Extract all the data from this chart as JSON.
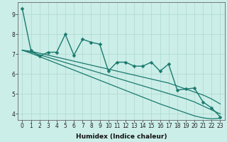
{
  "title": "",
  "xlabel": "Humidex (Indice chaleur)",
  "ylabel": "",
  "bg_color": "#cceee8",
  "line_color": "#1a7a6e",
  "x_data": [
    0,
    1,
    2,
    3,
    4,
    5,
    6,
    7,
    8,
    9,
    10,
    11,
    12,
    13,
    14,
    15,
    16,
    17,
    18,
    19,
    20,
    21,
    22,
    23
  ],
  "series1": [
    9.3,
    7.2,
    6.9,
    7.1,
    7.1,
    8.0,
    6.95,
    7.75,
    7.6,
    7.5,
    6.15,
    6.6,
    6.6,
    6.4,
    6.4,
    6.6,
    6.15,
    6.5,
    5.2,
    5.25,
    5.3,
    4.6,
    4.3,
    3.85
  ],
  "trend1": [
    7.2,
    7.15,
    7.05,
    6.95,
    6.85,
    6.75,
    6.65,
    6.55,
    6.45,
    6.35,
    6.25,
    6.15,
    6.05,
    5.95,
    5.85,
    5.75,
    5.65,
    5.55,
    5.4,
    5.25,
    5.1,
    4.95,
    4.75,
    4.5
  ],
  "trend2": [
    7.2,
    7.1,
    6.97,
    6.84,
    6.71,
    6.58,
    6.45,
    6.32,
    6.19,
    6.06,
    5.93,
    5.8,
    5.67,
    5.54,
    5.41,
    5.28,
    5.15,
    5.02,
    4.89,
    4.76,
    4.6,
    4.4,
    4.2,
    4.0
  ],
  "trend3": [
    7.2,
    7.05,
    6.88,
    6.71,
    6.54,
    6.37,
    6.2,
    6.03,
    5.86,
    5.69,
    5.52,
    5.35,
    5.18,
    5.01,
    4.84,
    4.67,
    4.5,
    4.35,
    4.2,
    4.05,
    3.9,
    3.8,
    3.75,
    3.78
  ],
  "ylim_min": 3.7,
  "ylim_max": 9.6,
  "xlim_min": -0.5,
  "xlim_max": 23.5,
  "yticks": [
    4,
    5,
    6,
    7,
    8,
    9
  ],
  "xticks": [
    0,
    1,
    2,
    3,
    4,
    5,
    6,
    7,
    8,
    9,
    10,
    11,
    12,
    13,
    14,
    15,
    16,
    17,
    18,
    19,
    20,
    21,
    22,
    23
  ],
  "grid_color": "#aad8d0",
  "marker_size": 2.5,
  "line_width": 1.0,
  "tick_fontsize": 5.5,
  "xlabel_fontsize": 6.5
}
